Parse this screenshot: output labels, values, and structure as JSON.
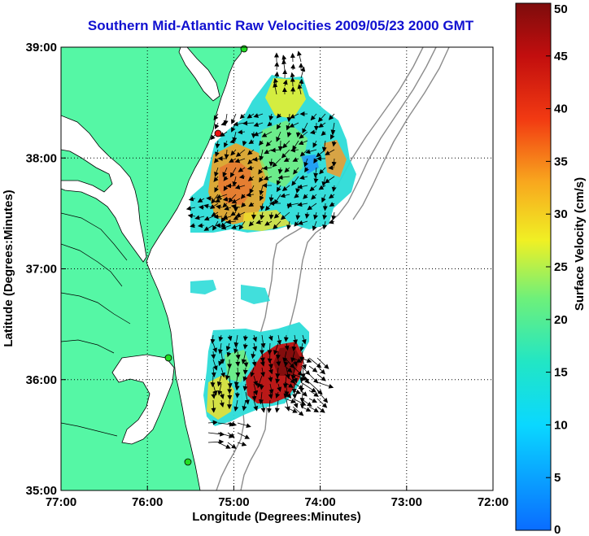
{
  "title": "Southern Mid-Atlantic Raw Velocities 2009/05/23 2000 GMT",
  "x_axis": {
    "label": "Longitude (Degrees:Minutes)",
    "ticks": [
      {
        "value": -77,
        "label": "77:00"
      },
      {
        "value": -76,
        "label": "76:00"
      },
      {
        "value": -75,
        "label": "75:00"
      },
      {
        "value": -74,
        "label": "74:00"
      },
      {
        "value": -73,
        "label": "73:00"
      },
      {
        "value": -72,
        "label": "72:00"
      }
    ],
    "range": [
      -77,
      -72
    ]
  },
  "y_axis": {
    "label": "Latitude (Degrees:Minutes)",
    "ticks": [
      {
        "value": 39,
        "label": "39:00"
      },
      {
        "value": 38,
        "label": "38:00"
      },
      {
        "value": 37,
        "label": "37:00"
      },
      {
        "value": 36,
        "label": "36:00"
      },
      {
        "value": 35,
        "label": "35:00"
      }
    ],
    "range": [
      35,
      39
    ]
  },
  "colorbar": {
    "label": "Surface Velocity (cm/s)",
    "min": 0,
    "max": 50,
    "ticks": [
      {
        "value": 50,
        "label": "50"
      },
      {
        "value": 45,
        "label": "45"
      },
      {
        "value": 40,
        "label": "40"
      },
      {
        "value": 35,
        "label": "35"
      },
      {
        "value": 30,
        "label": "30"
      },
      {
        "value": 25,
        "label": "25"
      },
      {
        "value": 20,
        "label": "20"
      },
      {
        "value": 15,
        "label": "15"
      },
      {
        "value": 10,
        "label": "10"
      },
      {
        "value": 5,
        "label": "5"
      },
      {
        "value": 0,
        "label": "0"
      }
    ]
  },
  "colors": {
    "land": "#55f7a5",
    "title": "#1010d0",
    "grid": "#000000",
    "bathymetry": "#8c8c8c",
    "station_green": "#22dd22",
    "station_red": "#ee1111"
  }
}
